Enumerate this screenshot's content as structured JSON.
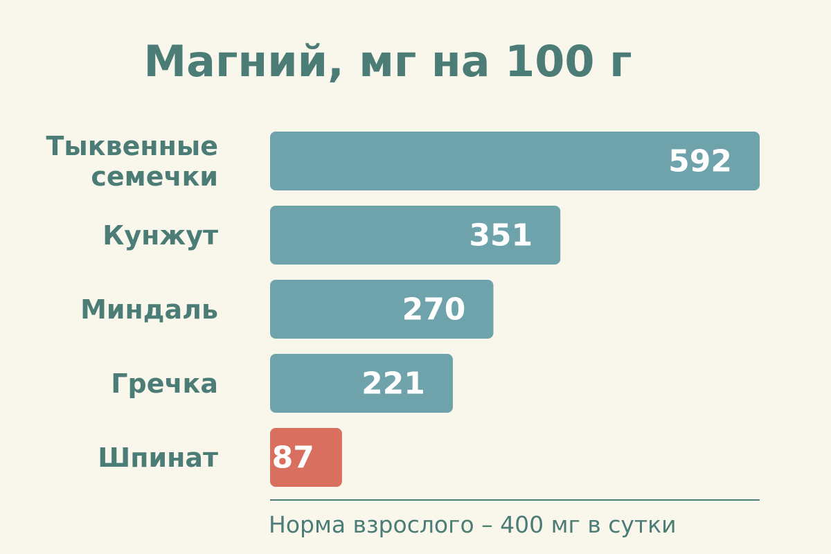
{
  "chart_data": {
    "type": "bar",
    "orientation": "horizontal",
    "title": "Магний, мг на 100 г",
    "categories": [
      "Тыквенные семечки",
      "Кунжут",
      "Миндаль",
      "Гречка",
      "Шпинат"
    ],
    "values": [
      592,
      351,
      270,
      221,
      87
    ],
    "colors": [
      "#6fa3ab",
      "#6fa3ab",
      "#6fa3ab",
      "#6fa3ab",
      "#d9705f"
    ],
    "note": "Норма взрослого – 400 мг в сутки"
  }
}
